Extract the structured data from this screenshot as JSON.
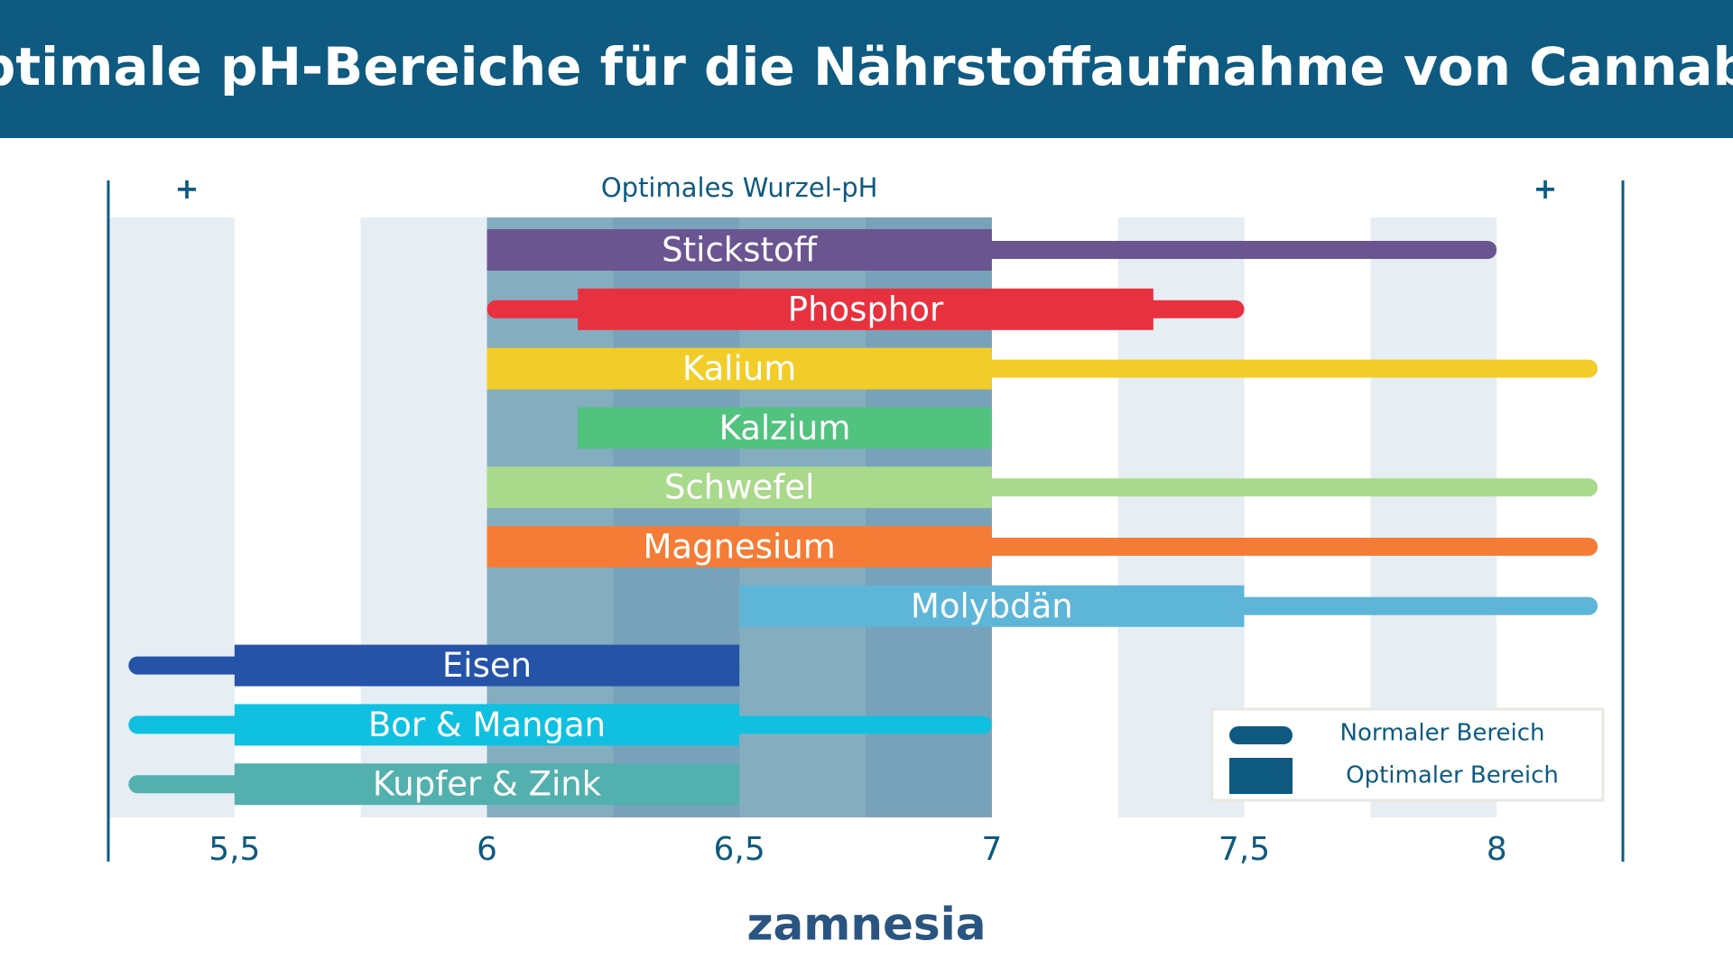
{
  "chart_data": {
    "type": "range-bar",
    "title": "Optimale pH-Bereiche für die Nährstoffaufnahme von Cannabis",
    "highlight": {
      "label": "Optimales Wurzel-pH",
      "range": [
        6,
        7
      ]
    },
    "top_symbols": [
      "+",
      "+"
    ],
    "xlim": [
      5.25,
      8.25
    ],
    "xticks": [
      {
        "value": 5.5,
        "label": "5,5"
      },
      6,
      {
        "value": 6.5,
        "label": "6,5"
      },
      7,
      {
        "value": 7.5,
        "label": "7,5"
      },
      8
    ],
    "legend": {
      "normal": "Normaler Bereich",
      "optimal": "Optimaler Bereich",
      "color": "#0e5a80"
    },
    "series": [
      {
        "name": "Stickstoff",
        "color": "#6b5591",
        "normal": [
          6,
          8
        ],
        "optimal": [
          6,
          7
        ]
      },
      {
        "name": "Phosphor",
        "color": "#e8313f",
        "normal": [
          6,
          7.5
        ],
        "optimal": [
          6.18,
          7.32
        ]
      },
      {
        "name": "Kalium",
        "color": "#f2cd2a",
        "normal": [
          6,
          8.2
        ],
        "optimal": [
          6,
          7
        ]
      },
      {
        "name": "Kalzium",
        "color": "#52c27f",
        "normal": null,
        "optimal": [
          6.18,
          7
        ]
      },
      {
        "name": "Schwefel",
        "color": "#a9d98a",
        "normal": [
          6,
          8.2
        ],
        "optimal": [
          6,
          7
        ]
      },
      {
        "name": "Magnesium",
        "color": "#f47c36",
        "normal": [
          6,
          8.2
        ],
        "optimal": [
          6,
          7
        ]
      },
      {
        "name": "Molybdän",
        "color": "#5db6d8",
        "normal": [
          6.5,
          8.2
        ],
        "optimal": [
          6.5,
          7.5
        ]
      },
      {
        "name": "Eisen",
        "color": "#2553a8",
        "normal": [
          5.29,
          6.5
        ],
        "optimal": [
          5.5,
          6.5
        ]
      },
      {
        "name": "Bor & Mangan",
        "color": "#10c0e0",
        "normal": [
          5.29,
          7
        ],
        "optimal": [
          5.5,
          6.5
        ]
      },
      {
        "name": "Kupfer & Zink",
        "color": "#52b0ae",
        "normal": [
          5.29,
          6.5
        ],
        "optimal": [
          5.5,
          6.5
        ]
      }
    ],
    "brand": "zamnesia"
  }
}
